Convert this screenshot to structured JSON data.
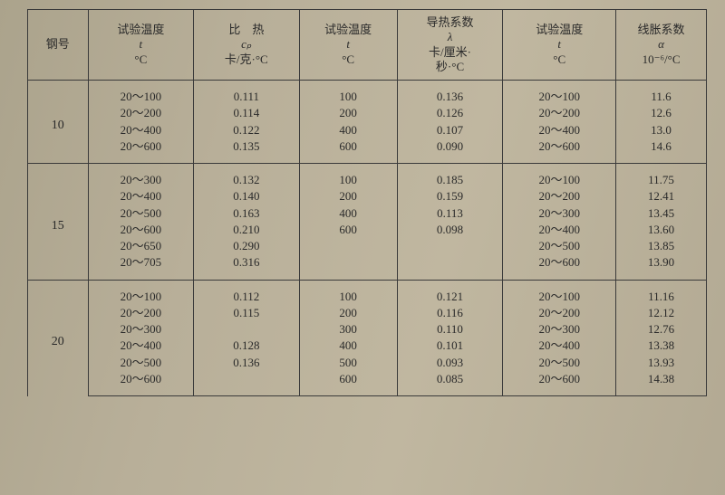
{
  "headers": {
    "c0": {
      "l1": "钢号"
    },
    "c1": {
      "l1": "试验温度",
      "l2": "t",
      "l3": "°C"
    },
    "c2": {
      "l1": "比　热",
      "l2": "cₚ",
      "l3": "卡/克·°C"
    },
    "c3": {
      "l1": "试验温度",
      "l2": "t",
      "l3": "°C"
    },
    "c4": {
      "l1": "导热系数",
      "l2": "λ",
      "l3": "卡/厘米·",
      "l4": "秒·°C"
    },
    "c5": {
      "l1": "试验温度",
      "l2": "t",
      "l3": "°C"
    },
    "c6": {
      "l1": "线胀系数",
      "l2": "α",
      "l3": "10⁻⁶/°C"
    }
  },
  "groups": [
    {
      "grade": "10",
      "rows": [
        {
          "t1": "20～100",
          "cp": "0.111",
          "t2": "100",
          "lam": "0.136",
          "t3": "20～100",
          "a": "11.6"
        },
        {
          "t1": "20～200",
          "cp": "0.114",
          "t2": "200",
          "lam": "0.126",
          "t3": "20～200",
          "a": "12.6"
        },
        {
          "t1": "20～400",
          "cp": "0.122",
          "t2": "400",
          "lam": "0.107",
          "t3": "20～400",
          "a": "13.0"
        },
        {
          "t1": "20～600",
          "cp": "0.135",
          "t2": "600",
          "lam": "0.090",
          "t3": "20～600",
          "a": "14.6"
        }
      ]
    },
    {
      "grade": "15",
      "rows": [
        {
          "t1": "20～300",
          "cp": "0.132",
          "t2": "100",
          "lam": "0.185",
          "t3": "20～100",
          "a": "11.75"
        },
        {
          "t1": "20～400",
          "cp": "0.140",
          "t2": "200",
          "lam": "0.159",
          "t3": "20～200",
          "a": "12.41"
        },
        {
          "t1": "20～500",
          "cp": "0.163",
          "t2": "400",
          "lam": "0.113",
          "t3": "20～300",
          "a": "13.45"
        },
        {
          "t1": "20～600",
          "cp": "0.210",
          "t2": "600",
          "lam": "0.098",
          "t3": "20～400",
          "a": "13.60"
        },
        {
          "t1": "20～650",
          "cp": "0.290",
          "t2": "",
          "lam": "",
          "t3": "20～500",
          "a": "13.85"
        },
        {
          "t1": "20～705",
          "cp": "0.316",
          "t2": "",
          "lam": "",
          "t3": "20～600",
          "a": "13.90"
        }
      ]
    },
    {
      "grade": "20",
      "rows": [
        {
          "t1": "20～100",
          "cp": "0.112",
          "t2": "100",
          "lam": "0.121",
          "t3": "20～100",
          "a": "11.16"
        },
        {
          "t1": "20～200",
          "cp": "0.115",
          "t2": "200",
          "lam": "0.116",
          "t3": "20～200",
          "a": "12.12"
        },
        {
          "t1": "20～300",
          "cp": "",
          "t2": "300",
          "lam": "0.110",
          "t3": "20～300",
          "a": "12.76"
        },
        {
          "t1": "20～400",
          "cp": "0.128",
          "t2": "400",
          "lam": "0.101",
          "t3": "20～400",
          "a": "13.38"
        },
        {
          "t1": "20～500",
          "cp": "0.136",
          "t2": "500",
          "lam": "0.093",
          "t3": "20～500",
          "a": "13.93"
        },
        {
          "t1": "20～600",
          "cp": "",
          "t2": "600",
          "lam": "0.085",
          "t3": "20～600",
          "a": "14.38"
        }
      ]
    }
  ],
  "style": {
    "background_color": "#b2a993",
    "text_color": "#2a2a2a",
    "border_color": "#3a3a3a",
    "font_family": "SimSun",
    "header_fontsize_pt": 10,
    "body_fontsize_pt": 10,
    "col_widths_pct": [
      8,
      14,
      14,
      13,
      14,
      15,
      12
    ],
    "rows_per_group": [
      4,
      6,
      6
    ]
  }
}
